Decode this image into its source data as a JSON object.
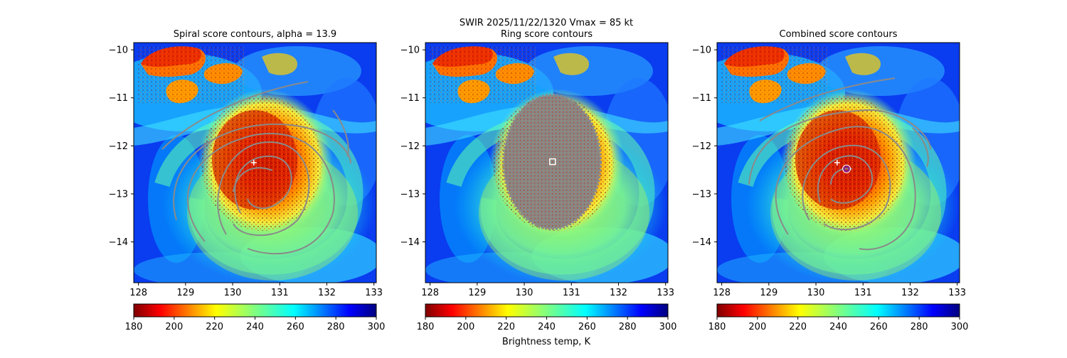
{
  "figure": {
    "suptitle": "SWIR  2025/11/22/1320    Vmax = 85 kt",
    "colorbar_label": "Brightness temp, K"
  },
  "colors": {
    "contour": "#8a8a8a",
    "center_marker": "#ffffff",
    "combined_marker": "#7b1fa2"
  },
  "chart_data": [
    {
      "type": "heatmap",
      "title": "Spiral score contours, alpha = 13.9",
      "xlim": [
        127.9,
        133.05
      ],
      "ylim": [
        -14.85,
        -9.85
      ],
      "xticks": [
        128,
        129,
        130,
        131,
        132,
        133
      ],
      "yticks": [
        -10,
        -11,
        -12,
        -13,
        -14
      ],
      "center_marker": {
        "type": "plus",
        "lon": 130.45,
        "lat": -12.35
      },
      "colorbar": {
        "min": 180,
        "max": 300,
        "ticks": [
          180,
          200,
          220,
          240,
          260,
          280,
          300
        ],
        "colormap": "jet_r",
        "label": ""
      }
    },
    {
      "type": "heatmap",
      "title": "Ring score contours",
      "xlim": [
        127.9,
        133.05
      ],
      "ylim": [
        -14.85,
        -9.85
      ],
      "xticks": [
        128,
        129,
        130,
        131,
        132,
        133
      ],
      "yticks": [
        -10,
        -11,
        -12,
        -13,
        -14
      ],
      "center_marker": {
        "type": "square",
        "lon": 130.6,
        "lat": -12.33
      },
      "colorbar": {
        "min": 180,
        "max": 300,
        "ticks": [
          180,
          200,
          220,
          240,
          260,
          280,
          300
        ],
        "colormap": "jet_r",
        "label": "Brightness temp, K"
      }
    },
    {
      "type": "heatmap",
      "title": "Combined score contours",
      "xlim": [
        127.9,
        133.05
      ],
      "ylim": [
        -14.85,
        -9.85
      ],
      "xticks": [
        128,
        129,
        130,
        131,
        132,
        133
      ],
      "yticks": [
        -10,
        -11,
        -12,
        -13,
        -14
      ],
      "center_marker": {
        "type": "plus",
        "lon": 130.45,
        "lat": -12.35
      },
      "combined_marker": {
        "type": "circle",
        "lon": 130.65,
        "lat": -12.48
      },
      "colorbar": {
        "min": 180,
        "max": 300,
        "ticks": [
          180,
          200,
          220,
          240,
          260,
          280,
          300
        ],
        "colormap": "jet_r",
        "label": ""
      }
    }
  ]
}
